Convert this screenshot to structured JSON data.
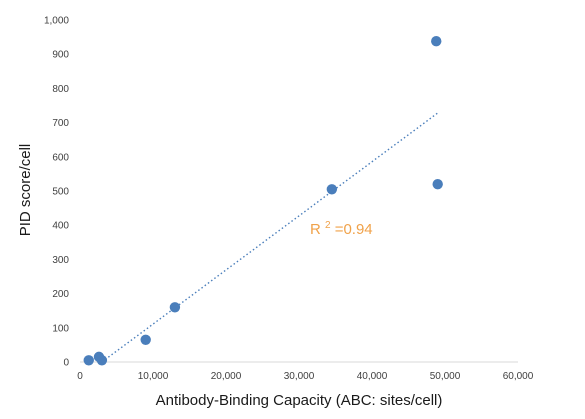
{
  "chart_data": {
    "type": "scatter",
    "xlabel": "Antibody-Binding Capacity (ABC: sites/cell)",
    "ylabel": "PID score/cell",
    "xlim": [
      0,
      60000
    ],
    "ylim": [
      0,
      1000
    ],
    "x_ticks": [
      "0",
      "10,000",
      "20,000",
      "30,000",
      "40,000",
      "50,000",
      "60,000"
    ],
    "y_ticks": [
      "0",
      "100",
      "200",
      "300",
      "400",
      "500",
      "600",
      "700",
      "800",
      "900",
      "1,000"
    ],
    "grid": false,
    "series": [
      {
        "color": "#4a7ebb",
        "points": [
          {
            "x": 1200,
            "y": 5
          },
          {
            "x": 2600,
            "y": 15
          },
          {
            "x": 3000,
            "y": 5
          },
          {
            "x": 9000,
            "y": 65
          },
          {
            "x": 13000,
            "y": 160
          },
          {
            "x": 34500,
            "y": 505
          },
          {
            "x": 48800,
            "y": 938
          },
          {
            "x": 49000,
            "y": 520
          }
        ]
      }
    ],
    "trendline": {
      "style": "dotted",
      "color": "#4a7ebb",
      "x_start": 3000,
      "y_start": 0,
      "x_end": 49000,
      "y_end": 728
    },
    "annotation": {
      "text_main": "R",
      "text_sup": "2",
      "text_rest": "=0.94",
      "x": 31500,
      "y": 375,
      "color": "#f0a24a"
    }
  }
}
